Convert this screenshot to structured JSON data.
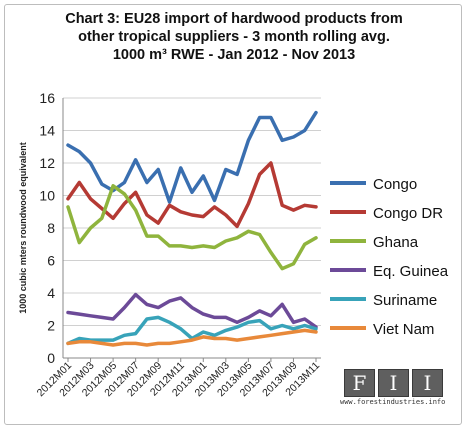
{
  "chart_data": {
    "type": "line",
    "title_lines": [
      "Chart 3: EU28 import of hardwood products from",
      "other tropical suppliers -  3 month rolling  avg.",
      "1000 m³ RWE  - Jan 2012 - Nov 2013"
    ],
    "ylabel": "1000 cubic mters roundwood equivalent",
    "xlabel": "",
    "ylim": [
      0,
      16
    ],
    "yticks": [
      "0",
      "2",
      "4",
      "6",
      "8",
      "10",
      "12",
      "14",
      "16"
    ],
    "x": [
      "2012M01",
      "2012M02",
      "2012M03",
      "2012M04",
      "2012M05",
      "2012M06",
      "2012M07",
      "2012M08",
      "2012M09",
      "2012M10",
      "2012M11",
      "2012M12",
      "2013M01",
      "2013M02",
      "2013M03",
      "2013M04",
      "2013M05",
      "2013M06",
      "2013M07",
      "2013M08",
      "2013M09",
      "2013M10",
      "2013M11"
    ],
    "xtick_labels": [
      "2012M01",
      "2012M03",
      "2012M05",
      "2012M07",
      "2012M09",
      "2012M11",
      "2013M01",
      "2013M03",
      "2013M05",
      "2013M07",
      "2013M09",
      "2013M11"
    ],
    "grid": true,
    "legend_position": "right",
    "series": [
      {
        "name": "Congo",
        "color": "#3a6fb0",
        "values": [
          13.1,
          12.7,
          12.0,
          10.7,
          10.3,
          10.8,
          12.2,
          10.8,
          11.6,
          9.6,
          11.7,
          10.2,
          11.2,
          9.7,
          11.6,
          11.3,
          13.4,
          14.8,
          14.8,
          13.4,
          13.6,
          14.0,
          15.1
        ]
      },
      {
        "name": "Congo DR",
        "color": "#b53a34",
        "values": [
          9.8,
          10.8,
          9.8,
          9.2,
          8.6,
          9.5,
          10.2,
          8.8,
          8.3,
          9.4,
          9.0,
          8.8,
          8.7,
          9.3,
          8.8,
          8.1,
          9.5,
          11.3,
          12.0,
          9.4,
          9.1,
          9.4,
          9.3
        ]
      },
      {
        "name": "Ghana",
        "color": "#8fb43d",
        "values": [
          9.3,
          7.1,
          8.0,
          8.6,
          10.6,
          10.1,
          9.1,
          7.5,
          7.5,
          6.9,
          6.9,
          6.8,
          6.9,
          6.8,
          7.2,
          7.4,
          7.8,
          7.6,
          6.5,
          5.5,
          5.8,
          7.0,
          7.4
        ]
      },
      {
        "name": "Eq. Guinea",
        "color": "#6c4a98",
        "values": [
          2.8,
          2.7,
          2.6,
          2.5,
          2.4,
          3.1,
          3.9,
          3.3,
          3.1,
          3.5,
          3.7,
          3.1,
          2.7,
          2.5,
          2.5,
          2.2,
          2.5,
          2.9,
          2.6,
          3.3,
          2.2,
          2.4,
          1.9
        ]
      },
      {
        "name": "Suriname",
        "color": "#38a3b9",
        "values": [
          0.9,
          1.2,
          1.1,
          1.1,
          1.1,
          1.4,
          1.5,
          2.4,
          2.5,
          2.2,
          1.8,
          1.2,
          1.6,
          1.4,
          1.7,
          1.9,
          2.2,
          2.3,
          1.8,
          2.0,
          1.8,
          2.0,
          1.8
        ]
      },
      {
        "name": "Viet Nam",
        "color": "#e8893a",
        "values": [
          0.9,
          1.0,
          1.0,
          0.9,
          0.8,
          0.9,
          0.9,
          0.8,
          0.9,
          0.9,
          1.0,
          1.1,
          1.3,
          1.2,
          1.2,
          1.1,
          1.2,
          1.3,
          1.4,
          1.5,
          1.6,
          1.7,
          1.6
        ]
      }
    ]
  },
  "logo": {
    "letters": [
      "F",
      "I",
      "I"
    ],
    "url": "www.forestindustries.info"
  }
}
